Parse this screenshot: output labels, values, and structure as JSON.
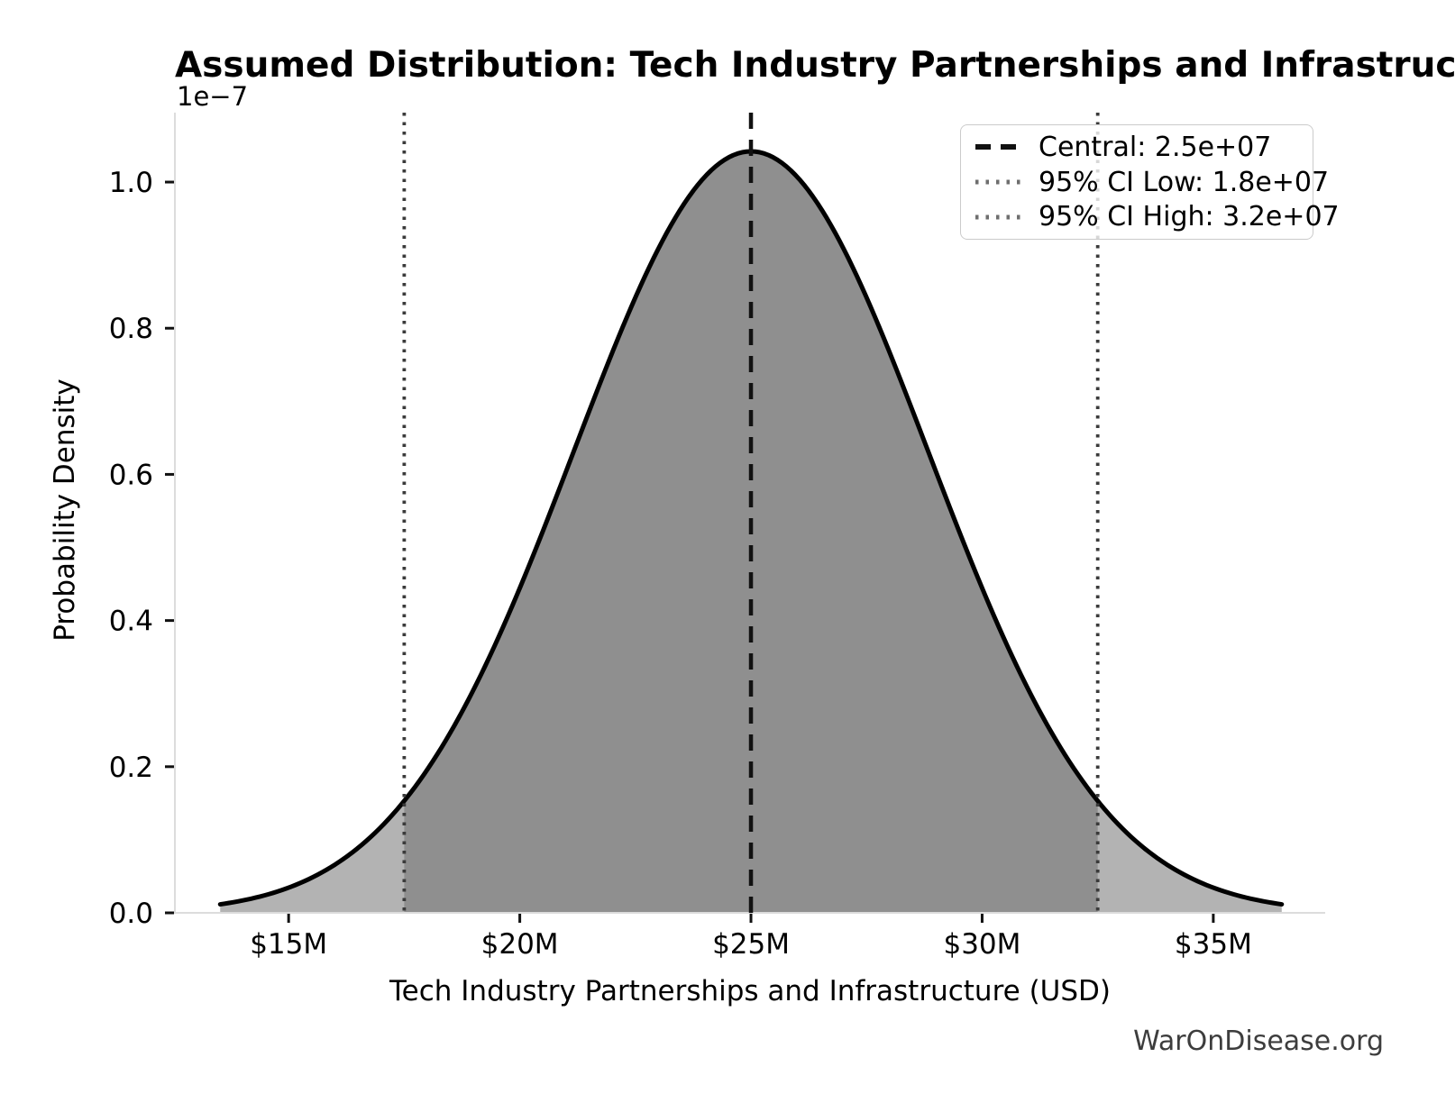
{
  "watermark": "WarOnDisease.org",
  "chart_data": {
    "type": "area",
    "subtype": "normal-distribution-density",
    "title": "Assumed Distribution: Tech Industry Partnerships and Infrastructure",
    "xlabel": "Tech Industry Partnerships and Infrastructure (USD)",
    "ylabel": "Probability Density",
    "y_offset_label": "1e−7",
    "grid": false,
    "legend_position": "upper right",
    "distribution": {
      "shape": "normal",
      "mean": 25000000,
      "sigma": 3830000,
      "peak_density": 1.042e-07,
      "curve_range": [
        13520000,
        36480000
      ]
    },
    "central_value": 25000000,
    "ci_low_value": 17500000,
    "ci_high_value": 32500000,
    "xlim": [
      12540000,
      37420000
    ],
    "ylim": [
      0,
      1.095e-07
    ],
    "x_ticks": [
      {
        "label": "$15M",
        "value": 15000000
      },
      {
        "label": "$20M",
        "value": 20000000
      },
      {
        "label": "$25M",
        "value": 25000000
      },
      {
        "label": "$30M",
        "value": 30000000
      },
      {
        "label": "$35M",
        "value": 35000000
      }
    ],
    "y_ticks": [
      {
        "label": "0.0",
        "value": 0
      },
      {
        "label": "0.2",
        "value": 2e-08
      },
      {
        "label": "0.4",
        "value": 4e-08
      },
      {
        "label": "0.6",
        "value": 6e-08
      },
      {
        "label": "0.8",
        "value": 8e-08
      },
      {
        "label": "1.0",
        "value": 1e-07
      }
    ],
    "legend": [
      {
        "label": "Central: 2.5e+07",
        "style": "dashed",
        "color": "#111111"
      },
      {
        "label": "95% CI Low: 1.8e+07",
        "style": "dotted",
        "color": "#6e6e6e"
      },
      {
        "label": "95% CI High: 3.2e+07",
        "style": "dotted",
        "color": "#6e6e6e"
      }
    ],
    "colors": {
      "curve": "#000000",
      "fill_outer": "#b3b3b3",
      "fill_inner": "#8f8f8f",
      "central_line": "#111111",
      "ci_line": "#3a3a3a",
      "spine": "#dcdcdc",
      "tick": "#111111",
      "tick_label": "#000000"
    }
  }
}
